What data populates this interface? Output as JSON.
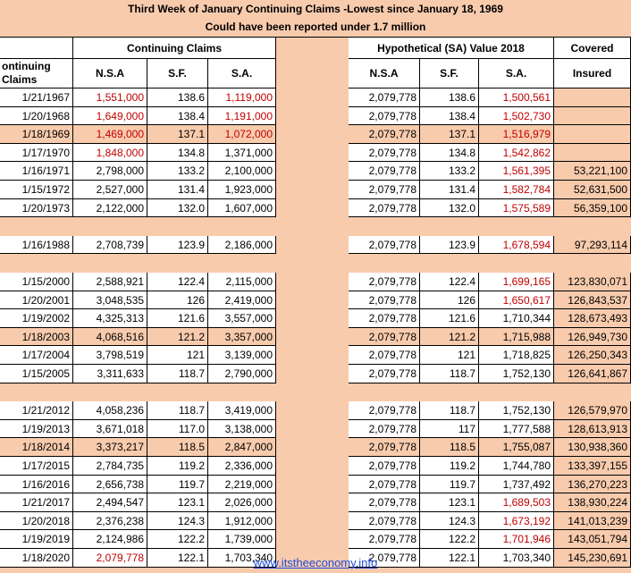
{
  "title": {
    "line1": "Third  Week of January Continuing Claims -Lowest since January 18, 1969",
    "line2": "Could have been reported under 1.7 million"
  },
  "headers": {
    "group_left": "Continuing Claims",
    "group_right": "Hypothetical (SA) Value 2018",
    "covered_top": "Covered",
    "covered_bottom": "Insured",
    "first_col": "ontinuing\nClaims",
    "nsa": "N.S.A",
    "sf": "S.F.",
    "sa": "S.A."
  },
  "footer": {
    "link": "www.itstheeconomy.info"
  },
  "colors": {
    "pink": "#f8cbad",
    "red": "#c00000",
    "link": "#1f4bd8"
  },
  "rows": [
    {
      "date": "1/21/1967",
      "nsa": "1,551,000",
      "sf": "138.6",
      "sa": "1,119,000",
      "h_nsa": "2,079,778",
      "h_sf": "138.6",
      "h_sa": "1,500,561",
      "covered": "",
      "pink": false,
      "red_nsa": true,
      "red_sa": true,
      "red_hsa": true
    },
    {
      "date": "1/20/1968",
      "nsa": "1,649,000",
      "sf": "138.4",
      "sa": "1,191,000",
      "h_nsa": "2,079,778",
      "h_sf": "138.4",
      "h_sa": "1,502,730",
      "covered": "",
      "pink": false,
      "red_nsa": true,
      "red_sa": true,
      "red_hsa": true
    },
    {
      "date": "1/18/1969",
      "nsa": "1,469,000",
      "sf": "137.1",
      "sa": "1,072,000",
      "h_nsa": "2,079,778",
      "h_sf": "137.1",
      "h_sa": "1,516,979",
      "covered": "",
      "pink": true,
      "red_nsa": true,
      "red_sa": true,
      "red_hsa": true
    },
    {
      "date": "1/17/1970",
      "nsa": "1,848,000",
      "sf": "134.8",
      "sa": "1,371,000",
      "h_nsa": "2,079,778",
      "h_sf": "134.8",
      "h_sa": "1,542,862",
      "covered": "",
      "pink": false,
      "red_nsa": true,
      "red_sa": false,
      "red_hsa": true
    },
    {
      "date": "1/16/1971",
      "nsa": "2,798,000",
      "sf": "133.2",
      "sa": "2,100,000",
      "h_nsa": "2,079,778",
      "h_sf": "133.2",
      "h_sa": "1,561,395",
      "covered": "53,221,100",
      "pink": false,
      "red_nsa": false,
      "red_sa": false,
      "red_hsa": true
    },
    {
      "date": "1/15/1972",
      "nsa": "2,527,000",
      "sf": "131.4",
      "sa": "1,923,000",
      "h_nsa": "2,079,778",
      "h_sf": "131.4",
      "h_sa": "1,582,784",
      "covered": "52,631,500",
      "pink": false,
      "red_nsa": false,
      "red_sa": false,
      "red_hsa": true
    },
    {
      "date": "1/20/1973",
      "nsa": "2,122,000",
      "sf": "132.0",
      "sa": "1,607,000",
      "h_nsa": "2,079,778",
      "h_sf": "132.0",
      "h_sa": "1,575,589",
      "covered": "56,359,100",
      "pink": false,
      "red_nsa": false,
      "red_sa": false,
      "red_hsa": true
    },
    {
      "gap": true
    },
    {
      "date": "1/16/1988",
      "nsa": "2,708,739",
      "sf": "123.9",
      "sa": "2,186,000",
      "h_nsa": "2,079,778",
      "h_sf": "123.9",
      "h_sa": "1,678,594",
      "covered": "97,293,114",
      "pink": false,
      "red_nsa": false,
      "red_sa": false,
      "red_hsa": true
    },
    {
      "gap": true
    },
    {
      "date": "1/15/2000",
      "nsa": "2,588,921",
      "sf": "122.4",
      "sa": "2,115,000",
      "h_nsa": "2,079,778",
      "h_sf": "122.4",
      "h_sa": "1,699,165",
      "covered": "123,830,071",
      "pink": false,
      "red_nsa": false,
      "red_sa": false,
      "red_hsa": true
    },
    {
      "date": "1/20/2001",
      "nsa": "3,048,535",
      "sf": "126",
      "sa": "2,419,000",
      "h_nsa": "2,079,778",
      "h_sf": "126",
      "h_sa": "1,650,617",
      "covered": "126,843,537",
      "pink": false,
      "red_nsa": false,
      "red_sa": false,
      "red_hsa": true
    },
    {
      "date": "1/19/2002",
      "nsa": "4,325,313",
      "sf": "121.6",
      "sa": "3,557,000",
      "h_nsa": "2,079,778",
      "h_sf": "121.6",
      "h_sa": "1,710,344",
      "covered": "128,673,493",
      "pink": false,
      "red_nsa": false,
      "red_sa": false,
      "red_hsa": false
    },
    {
      "date": "1/18/2003",
      "nsa": "4,068,516",
      "sf": "121.2",
      "sa": "3,357,000",
      "h_nsa": "2,079,778",
      "h_sf": "121.2",
      "h_sa": "1,715,988",
      "covered": "126,949,730",
      "pink": true,
      "red_nsa": false,
      "red_sa": false,
      "red_hsa": false
    },
    {
      "date": "1/17/2004",
      "nsa": "3,798,519",
      "sf": "121",
      "sa": "3,139,000",
      "h_nsa": "2,079,778",
      "h_sf": "121",
      "h_sa": "1,718,825",
      "covered": "126,250,343",
      "pink": false,
      "red_nsa": false,
      "red_sa": false,
      "red_hsa": false
    },
    {
      "date": "1/15/2005",
      "nsa": "3,311,633",
      "sf": "118.7",
      "sa": "2,790,000",
      "h_nsa": "2,079,778",
      "h_sf": "118.7",
      "h_sa": "1,752,130",
      "covered": "126,641,867",
      "pink": false,
      "red_nsa": false,
      "red_sa": false,
      "red_hsa": false
    },
    {
      "gap": true
    },
    {
      "date": "1/21/2012",
      "nsa": "4,058,236",
      "sf": "118.7",
      "sa": "3,419,000",
      "h_nsa": "2,079,778",
      "h_sf": "118.7",
      "h_sa": "1,752,130",
      "covered": "126,579,970",
      "pink": false,
      "red_nsa": false,
      "red_sa": false,
      "red_hsa": false
    },
    {
      "date": "1/19/2013",
      "nsa": "3,671,018",
      "sf": "117.0",
      "sa": "3,138,000",
      "h_nsa": "2,079,778",
      "h_sf": "117",
      "h_sa": "1,777,588",
      "covered": "128,613,913",
      "pink": false,
      "red_nsa": false,
      "red_sa": false,
      "red_hsa": false
    },
    {
      "date": "1/18/2014",
      "nsa": "3,373,217",
      "sf": "118.5",
      "sa": "2,847,000",
      "h_nsa": "2,079,778",
      "h_sf": "118.5",
      "h_sa": "1,755,087",
      "covered": "130,938,360",
      "pink": true,
      "red_nsa": false,
      "red_sa": false,
      "red_hsa": false
    },
    {
      "date": "1/17/2015",
      "nsa": "2,784,735",
      "sf": "119.2",
      "sa": "2,336,000",
      "h_nsa": "2,079,778",
      "h_sf": "119.2",
      "h_sa": "1,744,780",
      "covered": "133,397,155",
      "pink": false,
      "red_nsa": false,
      "red_sa": false,
      "red_hsa": false
    },
    {
      "date": "1/16/2016",
      "nsa": "2,656,738",
      "sf": "119.7",
      "sa": "2,219,000",
      "h_nsa": "2,079,778",
      "h_sf": "119.7",
      "h_sa": "1,737,492",
      "covered": "136,270,223",
      "pink": false,
      "red_nsa": false,
      "red_sa": false,
      "red_hsa": false
    },
    {
      "date": "1/21/2017",
      "nsa": "2,494,547",
      "sf": "123.1",
      "sa": "2,026,000",
      "h_nsa": "2,079,778",
      "h_sf": "123.1",
      "h_sa": "1,689,503",
      "covered": "138,930,224",
      "pink": false,
      "red_nsa": false,
      "red_sa": false,
      "red_hsa": true
    },
    {
      "date": "1/20/2018",
      "nsa": "2,376,238",
      "sf": "124.3",
      "sa": "1,912,000",
      "h_nsa": "2,079,778",
      "h_sf": "124.3",
      "h_sa": "1,673,192",
      "covered": "141,013,239",
      "pink": false,
      "red_nsa": false,
      "red_sa": false,
      "red_hsa": true
    },
    {
      "date": "1/19/2019",
      "nsa": "2,124,986",
      "sf": "122.2",
      "sa": "1,739,000",
      "h_nsa": "2,079,778",
      "h_sf": "122.2",
      "h_sa": "1,701,946",
      "covered": "143,051,794",
      "pink": false,
      "red_nsa": false,
      "red_sa": false,
      "red_hsa": true
    },
    {
      "date": "1/18/2020",
      "nsa": "2,079,778",
      "sf": "122.1",
      "sa": "1,703,340",
      "h_nsa": "2,079,778",
      "h_sf": "122.1",
      "h_sa": "1,703,340",
      "covered": "145,230,691",
      "pink": false,
      "red_nsa": true,
      "red_sa": false,
      "red_hsa": false
    }
  ]
}
